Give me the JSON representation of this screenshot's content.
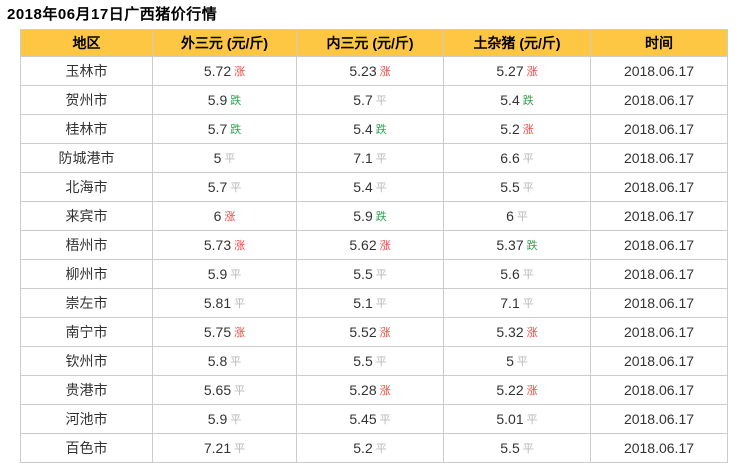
{
  "page": {
    "title": "2018年06月17日广西猪价行情"
  },
  "colors": {
    "header_bg": "#fdc643",
    "trend_up": "#f04642",
    "trend_down": "#2fa44e",
    "trend_flat": "#b8b8b8",
    "border": "#cccccc",
    "cell_text": "#333333"
  },
  "table": {
    "headers": {
      "region": "地区",
      "w3": "外三元 (元/斤)",
      "n3": "内三元 (元/斤)",
      "tz": "土杂猪 (元/斤)",
      "date": "时间"
    },
    "trend_labels": {
      "up": "涨",
      "down": "跌",
      "flat": "平"
    },
    "rows": [
      {
        "region": "玉林市",
        "w3": "5.72",
        "w3_trend": "up",
        "n3": "5.23",
        "n3_trend": "up",
        "tz": "5.27",
        "tz_trend": "up",
        "date": "2018.06.17"
      },
      {
        "region": "贺州市",
        "w3": "5.9",
        "w3_trend": "down",
        "n3": "5.7",
        "n3_trend": "flat",
        "tz": "5.4",
        "tz_trend": "down",
        "date": "2018.06.17"
      },
      {
        "region": "桂林市",
        "w3": "5.7",
        "w3_trend": "down",
        "n3": "5.4",
        "n3_trend": "down",
        "tz": "5.2",
        "tz_trend": "up",
        "date": "2018.06.17"
      },
      {
        "region": "防城港市",
        "w3": "5",
        "w3_trend": "flat",
        "n3": "7.1",
        "n3_trend": "flat",
        "tz": "6.6",
        "tz_trend": "flat",
        "date": "2018.06.17"
      },
      {
        "region": "北海市",
        "w3": "5.7",
        "w3_trend": "flat",
        "n3": "5.4",
        "n3_trend": "flat",
        "tz": "5.5",
        "tz_trend": "flat",
        "date": "2018.06.17"
      },
      {
        "region": "来宾市",
        "w3": "6",
        "w3_trend": "up",
        "n3": "5.9",
        "n3_trend": "down",
        "tz": "6",
        "tz_trend": "flat",
        "date": "2018.06.17"
      },
      {
        "region": "梧州市",
        "w3": "5.73",
        "w3_trend": "up",
        "n3": "5.62",
        "n3_trend": "up",
        "tz": "5.37",
        "tz_trend": "down",
        "date": "2018.06.17"
      },
      {
        "region": "柳州市",
        "w3": "5.9",
        "w3_trend": "flat",
        "n3": "5.5",
        "n3_trend": "flat",
        "tz": "5.6",
        "tz_trend": "flat",
        "date": "2018.06.17"
      },
      {
        "region": "崇左市",
        "w3": "5.81",
        "w3_trend": "flat",
        "n3": "5.1",
        "n3_trend": "flat",
        "tz": "7.1",
        "tz_trend": "flat",
        "date": "2018.06.17"
      },
      {
        "region": "南宁市",
        "w3": "5.75",
        "w3_trend": "up",
        "n3": "5.52",
        "n3_trend": "up",
        "tz": "5.32",
        "tz_trend": "up",
        "date": "2018.06.17"
      },
      {
        "region": "钦州市",
        "w3": "5.8",
        "w3_trend": "flat",
        "n3": "5.5",
        "n3_trend": "flat",
        "tz": "5",
        "tz_trend": "flat",
        "date": "2018.06.17"
      },
      {
        "region": "贵港市",
        "w3": "5.65",
        "w3_trend": "flat",
        "n3": "5.28",
        "n3_trend": "up",
        "tz": "5.22",
        "tz_trend": "up",
        "date": "2018.06.17"
      },
      {
        "region": "河池市",
        "w3": "5.9",
        "w3_trend": "flat",
        "n3": "5.45",
        "n3_trend": "flat",
        "tz": "5.01",
        "tz_trend": "flat",
        "date": "2018.06.17"
      },
      {
        "region": "百色市",
        "w3": "7.21",
        "w3_trend": "flat",
        "n3": "5.2",
        "n3_trend": "flat",
        "tz": "5.5",
        "tz_trend": "flat",
        "date": "2018.06.17"
      }
    ]
  }
}
